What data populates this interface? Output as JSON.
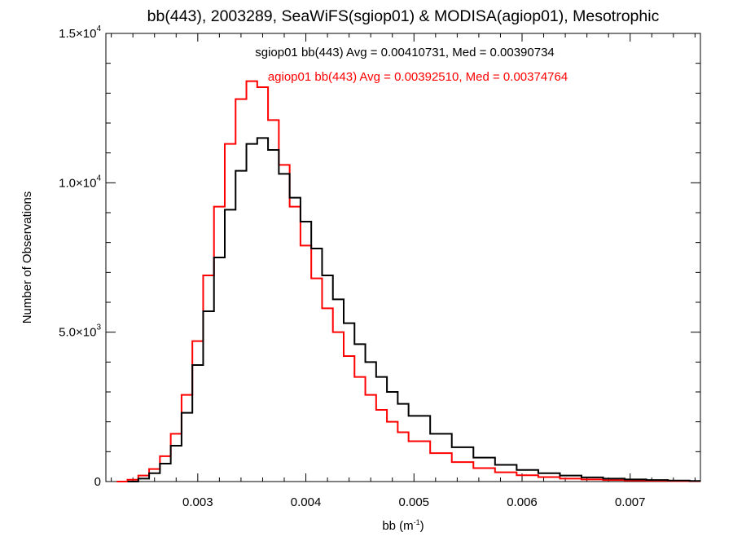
{
  "chart_data": {
    "type": "line",
    "step": true,
    "title": "bb(443), 2003289, SeaWiFS(sgiop01) & MODISA(agiop01), Mesotrophic",
    "xlabel_main": "bb (m",
    "xlabel_sup": "-1",
    "xlabel_tail": ")",
    "ylabel": "Number of Observations",
    "xlim": [
      0.00215,
      0.00765
    ],
    "ylim": [
      0,
      15000
    ],
    "xticks": [
      {
        "value": 0.003,
        "label": "0.003"
      },
      {
        "value": 0.004,
        "label": "0.004"
      },
      {
        "value": 0.005,
        "label": "0.005"
      },
      {
        "value": 0.006,
        "label": "0.006"
      },
      {
        "value": 0.007,
        "label": "0.007"
      }
    ],
    "yticks": [
      {
        "value": 0,
        "label": "0",
        "sup": ""
      },
      {
        "value": 5000,
        "label": "5.0×10",
        "sup": "3"
      },
      {
        "value": 10000,
        "label": "1.0×10",
        "sup": "4"
      },
      {
        "value": 15000,
        "label": "1.5×10",
        "sup": "4"
      }
    ],
    "grid": false,
    "legend": "top-center",
    "series": [
      {
        "name": "sgiop01",
        "label": "sgiop01 bb(443) Avg = 0.00410731, Med = 0.00390734",
        "color": "#000000",
        "x": [
          0.0024,
          0.0025,
          0.0026,
          0.0027,
          0.0028,
          0.0029,
          0.003,
          0.0031,
          0.0032,
          0.0033,
          0.0034,
          0.0035,
          0.0036,
          0.0037,
          0.0038,
          0.0039,
          0.004,
          0.0041,
          0.0042,
          0.0043,
          0.0044,
          0.0045,
          0.0046,
          0.0047,
          0.0048,
          0.0049,
          0.005,
          0.0052,
          0.0054,
          0.0056,
          0.0058,
          0.006,
          0.0062,
          0.0064,
          0.0066,
          0.0068,
          0.007,
          0.0072,
          0.0074,
          0.0076
        ],
        "y": [
          0,
          100,
          280,
          600,
          1200,
          2300,
          3900,
          5700,
          7500,
          9100,
          10400,
          11300,
          11500,
          11100,
          10300,
          9500,
          8700,
          7800,
          6900,
          6100,
          5300,
          4600,
          4000,
          3500,
          3000,
          2600,
          2200,
          1600,
          1150,
          800,
          560,
          390,
          280,
          200,
          140,
          100,
          70,
          50,
          35,
          20
        ]
      },
      {
        "name": "agiop01",
        "label": "agiop01 bb(443) Avg = 0.00392510, Med = 0.00374764",
        "color": "#ff0000",
        "x": [
          0.0023,
          0.0024,
          0.0025,
          0.0026,
          0.0027,
          0.0028,
          0.0029,
          0.003,
          0.0031,
          0.0032,
          0.0033,
          0.0034,
          0.0035,
          0.0036,
          0.0037,
          0.0038,
          0.0039,
          0.004,
          0.0041,
          0.0042,
          0.0043,
          0.0044,
          0.0045,
          0.0046,
          0.0047,
          0.0048,
          0.0049,
          0.005,
          0.0052,
          0.0054,
          0.0056,
          0.0058,
          0.006,
          0.0062,
          0.0064,
          0.0066,
          0.0068,
          0.007,
          0.0072,
          0.0074,
          0.0076
        ],
        "y": [
          0,
          60,
          200,
          420,
          850,
          1600,
          2900,
          4700,
          6900,
          9200,
          11300,
          12800,
          13400,
          13200,
          12100,
          10600,
          9200,
          7900,
          6800,
          5800,
          5000,
          4200,
          3500,
          2900,
          2400,
          2000,
          1650,
          1350,
          950,
          650,
          450,
          310,
          210,
          150,
          100,
          70,
          50,
          35,
          25,
          15,
          10
        ]
      }
    ]
  }
}
